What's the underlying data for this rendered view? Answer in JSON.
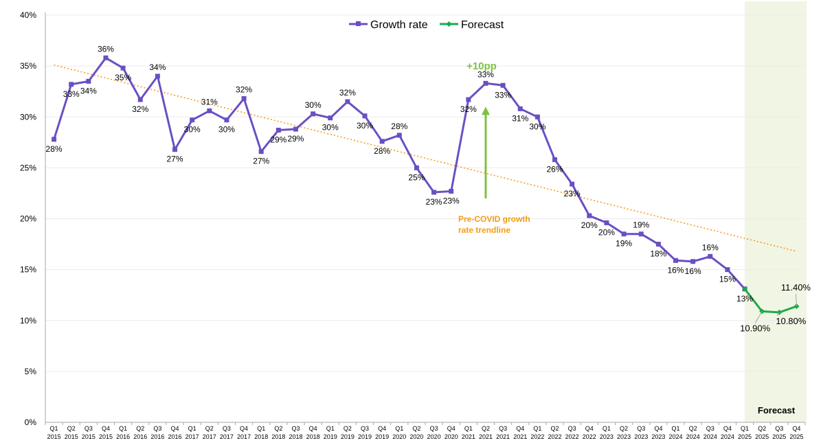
{
  "chart_data": {
    "type": "line",
    "title": "",
    "xlabel": "",
    "ylabel": "",
    "ylim": [
      0,
      40
    ],
    "y_ticks": [
      "0%",
      "5%",
      "10%",
      "15%",
      "20%",
      "25%",
      "30%",
      "35%",
      "40%"
    ],
    "grid": true,
    "legend_position": "top-center",
    "categories": [
      {
        "q": "Q1",
        "y": "2015"
      },
      {
        "q": "Q2",
        "y": "2015"
      },
      {
        "q": "Q3",
        "y": "2015"
      },
      {
        "q": "Q4",
        "y": "2015"
      },
      {
        "q": "Q1",
        "y": "2016"
      },
      {
        "q": "Q2",
        "y": "2016"
      },
      {
        "q": "Q3",
        "y": "2016"
      },
      {
        "q": "Q4",
        "y": "2016"
      },
      {
        "q": "Q1",
        "y": "2017"
      },
      {
        "q": "Q2",
        "y": "2017"
      },
      {
        "q": "Q3",
        "y": "2017"
      },
      {
        "q": "Q4",
        "y": "2017"
      },
      {
        "q": "Q1",
        "y": "2018"
      },
      {
        "q": "Q2",
        "y": "2018"
      },
      {
        "q": "Q3",
        "y": "2018"
      },
      {
        "q": "Q4",
        "y": "2018"
      },
      {
        "q": "Q1",
        "y": "2019"
      },
      {
        "q": "Q2",
        "y": "2019"
      },
      {
        "q": "Q3",
        "y": "2019"
      },
      {
        "q": "Q4",
        "y": "2019"
      },
      {
        "q": "Q1",
        "y": "2020"
      },
      {
        "q": "Q2",
        "y": "2020"
      },
      {
        "q": "Q3",
        "y": "2020"
      },
      {
        "q": "Q4",
        "y": "2020"
      },
      {
        "q": "Q1",
        "y": "2021"
      },
      {
        "q": "Q2",
        "y": "2021"
      },
      {
        "q": "Q3",
        "y": "2021"
      },
      {
        "q": "Q4",
        "y": "2021"
      },
      {
        "q": "Q1",
        "y": "2022"
      },
      {
        "q": "Q2",
        "y": "2022"
      },
      {
        "q": "Q3",
        "y": "2022"
      },
      {
        "q": "Q4",
        "y": "2022"
      },
      {
        "q": "Q1",
        "y": "2023"
      },
      {
        "q": "Q2",
        "y": "2023"
      },
      {
        "q": "Q3",
        "y": "2023"
      },
      {
        "q": "Q4",
        "y": "2023"
      },
      {
        "q": "Q1",
        "y": "2024"
      },
      {
        "q": "Q2",
        "y": "2024"
      },
      {
        "q": "Q3",
        "y": "2024"
      },
      {
        "q": "Q4",
        "y": "2024"
      },
      {
        "q": "Q1",
        "y": "2025"
      },
      {
        "q": "Q2",
        "y": "2025"
      },
      {
        "q": "Q3",
        "y": "2025"
      },
      {
        "q": "Q4",
        "y": "2025"
      }
    ],
    "series": [
      {
        "name": "Growth rate",
        "color": "#6a4fc4",
        "marker": "square",
        "values": [
          27.8,
          33.2,
          33.5,
          35.8,
          34.8,
          31.7,
          34.0,
          26.8,
          29.7,
          30.6,
          29.7,
          31.8,
          26.6,
          28.7,
          28.8,
          30.3,
          29.9,
          31.5,
          30.1,
          27.6,
          28.2,
          25.0,
          22.6,
          22.7,
          31.7,
          33.3,
          33.1,
          30.8,
          30.0,
          25.8,
          23.4,
          20.3,
          19.6,
          18.5,
          18.5,
          17.5,
          15.9,
          15.8,
          16.3,
          15.0,
          13.1,
          null,
          null,
          null
        ],
        "labels": [
          "28%",
          "33%",
          "34%",
          "36%",
          "35%",
          "32%",
          "34%",
          "27%",
          "30%",
          "31%",
          "30%",
          "32%",
          "27%",
          "29%",
          "29%",
          "30%",
          "30%",
          "32%",
          "30%",
          "28%",
          "28%",
          "25%",
          "23%",
          "23%",
          "32%",
          "33%",
          "33%",
          "31%",
          "30%",
          "26%",
          "23%",
          "20%",
          "20%",
          "19%",
          "19%",
          "18%",
          "16%",
          "16%",
          "16%",
          "15%",
          "13%",
          null,
          null,
          null
        ]
      },
      {
        "name": "Forecast",
        "color": "#1aaa48",
        "marker": "diamond",
        "values": [
          null,
          null,
          null,
          null,
          null,
          null,
          null,
          null,
          null,
          null,
          null,
          null,
          null,
          null,
          null,
          null,
          null,
          null,
          null,
          null,
          null,
          null,
          null,
          null,
          null,
          null,
          null,
          null,
          null,
          null,
          null,
          null,
          null,
          null,
          null,
          null,
          null,
          null,
          null,
          null,
          13.1,
          10.9,
          10.8,
          11.4
        ],
        "labels": [
          null,
          null,
          null,
          null,
          null,
          null,
          null,
          null,
          null,
          null,
          null,
          null,
          null,
          null,
          null,
          null,
          null,
          null,
          null,
          null,
          null,
          null,
          null,
          null,
          null,
          null,
          null,
          null,
          null,
          null,
          null,
          null,
          null,
          null,
          null,
          null,
          null,
          null,
          null,
          null,
          null,
          "10.90%",
          "10.80%",
          "11.40%"
        ]
      }
    ],
    "trendline": {
      "color": "#f39c12",
      "style": "dotted",
      "start": {
        "index": 0,
        "value": 35.1
      },
      "end": {
        "index": 43,
        "value": 16.8
      }
    },
    "annotations": {
      "covid_bump": {
        "text": "+10pp",
        "color": "#7cc142",
        "arrow_index": 25,
        "arrow_from": 22.0,
        "arrow_to": 31.0
      },
      "trendline_label": {
        "lines": [
          "Pre-COVID growth",
          "rate trendline"
        ],
        "color": "#f39c12",
        "index": 25
      },
      "forecast_region": {
        "text": "Forecast",
        "start_index": 40.5,
        "end_index": 43.5,
        "color": "#f1f5e4"
      }
    }
  }
}
